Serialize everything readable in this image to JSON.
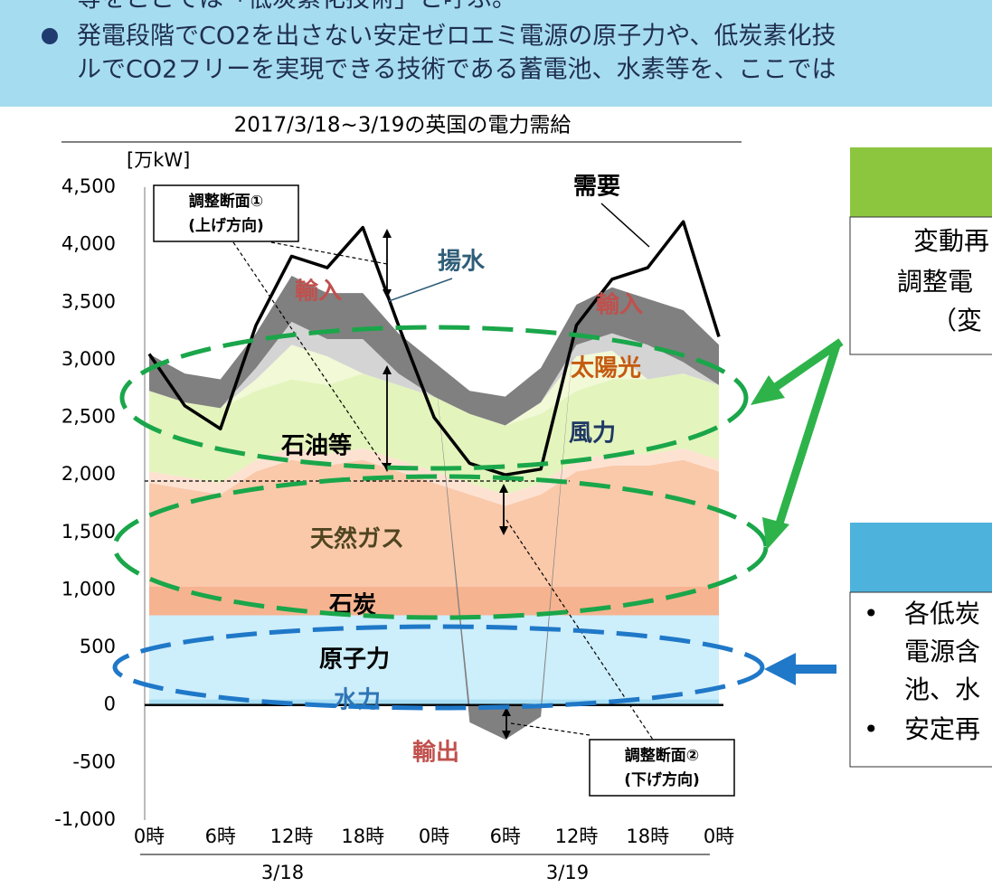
{
  "banner": {
    "lines": [
      "等をここでは「低炭素化技術」と呼ぶ。",
      "発電段階でCO2を出さない安定ゼロエミ電源の原子力や、低炭素化技",
      "ルでCO2フリーを実現できる技術である蓄電池、水素等を、ここでは"
    ]
  },
  "chart_data": {
    "type": "area",
    "stacked": true,
    "title": "2017/3/18~3/19の英国の電力需給",
    "y_label": "[万kW]",
    "x": [
      0,
      3,
      6,
      9,
      12,
      15,
      18,
      21,
      24,
      27,
      30,
      33,
      36,
      39,
      42,
      45,
      48
    ],
    "xlim": [
      0,
      48
    ],
    "xticks": [
      {
        "value": 0,
        "label": "0時"
      },
      {
        "value": 6,
        "label": "6時"
      },
      {
        "value": 12,
        "label": "12時"
      },
      {
        "value": 18,
        "label": "18時"
      },
      {
        "value": 24,
        "label": "0時"
      },
      {
        "value": 30,
        "label": "6時"
      },
      {
        "value": 36,
        "label": "12時"
      },
      {
        "value": 42,
        "label": "18時"
      },
      {
        "value": 48,
        "label": "0時"
      }
    ],
    "x_groups": [
      {
        "label": "3/18",
        "range": [
          0,
          24
        ]
      },
      {
        "label": "3/19",
        "range": [
          24,
          48
        ]
      }
    ],
    "ylim": [
      -1000,
      4500
    ],
    "yticks": [
      {
        "value": -1000,
        "label": "-1,000"
      },
      -500,
      0,
      500,
      {
        "value": 1000,
        "label": "1,000"
      },
      {
        "value": 1500,
        "label": "1,500"
      },
      {
        "value": 2000,
        "label": "2,000"
      },
      {
        "value": 2500,
        "label": "2,500"
      },
      {
        "value": 3000,
        "label": "3,000"
      },
      {
        "value": 3500,
        "label": "3,500"
      },
      {
        "value": 4000,
        "label": "4,000"
      },
      {
        "value": 4500,
        "label": "4,500"
      }
    ],
    "negative_tick_color": "#ff0000",
    "series": [
      {
        "name": "水力",
        "color": "#a9dff4",
        "label_color": "#2e75b6",
        "values": [
          50,
          50,
          50,
          50,
          50,
          50,
          50,
          50,
          50,
          50,
          50,
          50,
          50,
          50,
          50,
          50,
          50
        ]
      },
      {
        "name": "原子力",
        "color": "#cdeefb",
        "label_color": "#000000",
        "values": [
          730,
          730,
          730,
          730,
          730,
          730,
          730,
          730,
          730,
          730,
          730,
          730,
          730,
          730,
          730,
          730,
          730
        ]
      },
      {
        "name": "石炭",
        "color": "#f6b38f",
        "label_color": "#000000",
        "values": [
          250,
          250,
          250,
          250,
          250,
          250,
          250,
          250,
          250,
          250,
          250,
          250,
          250,
          250,
          250,
          250,
          250
        ]
      },
      {
        "name": "天然ガス",
        "color": "#fac9aa",
        "label_color": "#4f4520",
        "values": [
          900,
          850,
          800,
          1000,
          1100,
          1050,
          1100,
          1000,
          900,
          800,
          700,
          800,
          1000,
          1050,
          1050,
          1100,
          1000
        ]
      },
      {
        "name": "石油等",
        "color": "#fde2d2",
        "label_color": "#000000",
        "values": [
          100,
          100,
          100,
          100,
          100,
          100,
          100,
          100,
          100,
          100,
          100,
          100,
          100,
          100,
          100,
          100,
          100
        ]
      },
      {
        "name": "風力",
        "color": "#e4f4bd",
        "label_color": "#1f3864",
        "values": [
          700,
          650,
          650,
          600,
          600,
          600,
          650,
          650,
          650,
          600,
          600,
          600,
          600,
          650,
          650,
          650,
          650
        ]
      },
      {
        "name": "太陽光",
        "color": "#f1f9d6",
        "label_color": "#c55a11",
        "values": [
          0,
          0,
          0,
          100,
          300,
          250,
          0,
          0,
          0,
          0,
          0,
          100,
          300,
          250,
          0,
          0,
          0
        ]
      },
      {
        "name": "揚水",
        "color": "#d4d4d4",
        "label_color": "#2f5d78",
        "values": [
          0,
          0,
          0,
          100,
          200,
          150,
          300,
          100,
          0,
          0,
          0,
          0,
          100,
          150,
          300,
          100,
          0
        ]
      },
      {
        "name": "輸入",
        "color": "#808080",
        "label_color": "#c0504d",
        "values": [
          320,
          250,
          250,
          300,
          400,
          400,
          400,
          350,
          300,
          200,
          250,
          300,
          350,
          400,
          400,
          450,
          350
        ]
      },
      {
        "name": "輸出",
        "color": "#808080",
        "label_color": "#c0504d",
        "values": [
          0,
          0,
          0,
          0,
          0,
          0,
          0,
          0,
          0,
          -150,
          -300,
          -100,
          0,
          0,
          0,
          0,
          0
        ]
      }
    ],
    "demand": {
      "name": "需要",
      "color": "#000000",
      "values": [
        3050,
        2600,
        2400,
        3300,
        3900,
        3800,
        4150,
        3300,
        2500,
        2100,
        2000,
        2050,
        3300,
        3700,
        3800,
        4200,
        3200
      ]
    },
    "annotations": [
      {
        "lines": [
          "調整断面①",
          "(上げ方向)"
        ]
      },
      {
        "lines": [
          "調整断面②",
          "(下げ方向)"
        ]
      }
    ]
  },
  "side_panels": [
    {
      "lines": [
        "変動再",
        "調整電",
        "（変"
      ]
    },
    {
      "lines": [
        "各低炭",
        "電源含",
        "池、水",
        "安定再"
      ]
    }
  ]
}
